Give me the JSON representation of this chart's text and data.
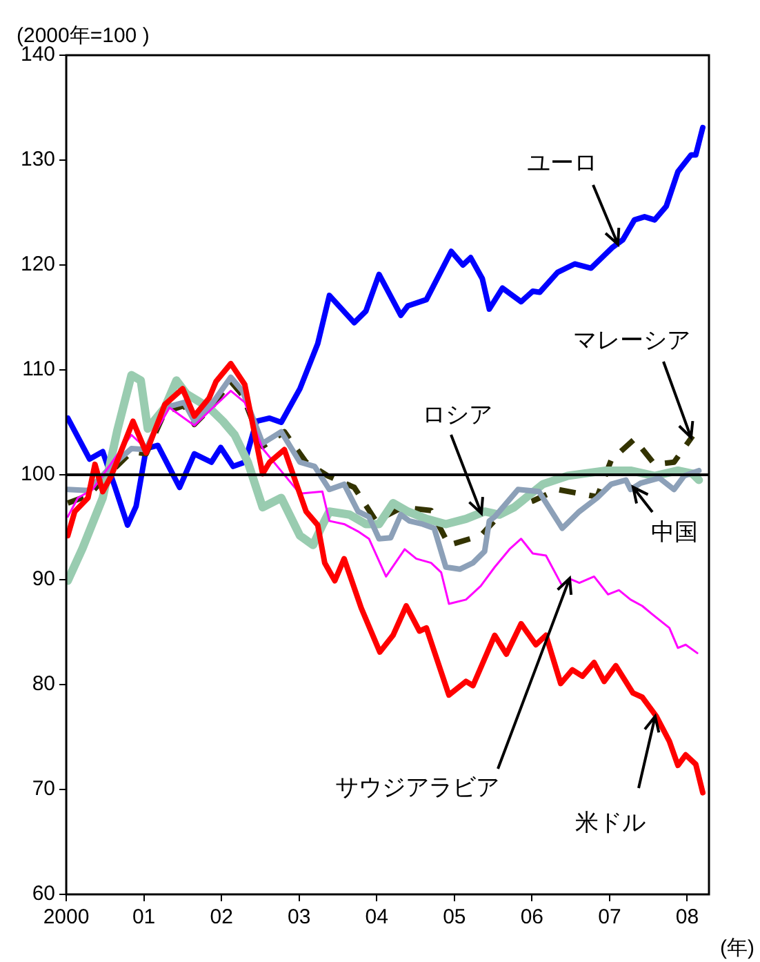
{
  "chart_data": {
    "type": "line",
    "ylabel": "(2000年=100 )",
    "xlabel": "(年)",
    "xlim": [
      2000,
      2008.28
    ],
    "ylim": [
      60,
      140
    ],
    "xticks": [
      {
        "value": 2000,
        "label": "2000"
      },
      {
        "value": 2001,
        "label": "01"
      },
      {
        "value": 2002,
        "label": "02"
      },
      {
        "value": 2003,
        "label": "03"
      },
      {
        "value": 2004,
        "label": "04"
      },
      {
        "value": 2005,
        "label": "05"
      },
      {
        "value": 2006,
        "label": "06"
      },
      {
        "value": 2007,
        "label": "07"
      },
      {
        "value": 2008,
        "label": "08"
      }
    ],
    "yticks": [
      60,
      70,
      80,
      90,
      100,
      110,
      120,
      130,
      140
    ],
    "grid": false,
    "legend": false,
    "marker": "none",
    "ref_lines": [
      {
        "axis": "y",
        "value": 100,
        "color": "#000000"
      }
    ],
    "annotations": [
      {
        "text": "ユーロ",
        "x": 2007.1,
        "y": 122
      },
      {
        "text": "マレーシア",
        "x": 2008.05,
        "y": 103.5
      },
      {
        "text": "ロシア",
        "x": 2005.34,
        "y": 96.3
      },
      {
        "text": "中国",
        "x": 2007.3,
        "y": 98.8
      },
      {
        "text": "サウジアラビア",
        "x": 2006.48,
        "y": 90.1
      },
      {
        "text": "米ドル",
        "x": 2007.58,
        "y": 77
      }
    ],
    "series": [
      {
        "color": "#0000ff",
        "x": [
          2000.02,
          2000.3,
          2000.47,
          2000.62,
          2000.79,
          2000.9,
          2001.03,
          2001.18,
          2001.46,
          2001.65,
          2001.87,
          2001.99,
          2002.15,
          2002.3,
          2002.45,
          2002.62,
          2002.77,
          2003.01,
          2003.24,
          2003.39,
          2003.71,
          2003.86,
          2004.03,
          2004.31,
          2004.4,
          2004.64,
          2004.96,
          2005.11,
          2005.21,
          2005.36,
          2005.45,
          2005.62,
          2005.86,
          2006.01,
          2006.1,
          2006.33,
          2006.55,
          2006.76,
          2007.04,
          2007.17,
          2007.32,
          2007.45,
          2007.58,
          2007.73,
          2007.88,
          2008.05,
          2008.11,
          2008.2
        ],
        "values": [
          105.4,
          101.5,
          102.2,
          99,
          95.2,
          97,
          102.5,
          102.8,
          98.8,
          102,
          101.2,
          102.6,
          100.8,
          101.2,
          105.1,
          105.4,
          105,
          108.2,
          112.5,
          117.1,
          114.5,
          115.6,
          119.1,
          115.2,
          116.1,
          116.7,
          121.3,
          120,
          120.7,
          118.7,
          115.8,
          117.8,
          116.5,
          117.5,
          117.4,
          119.3,
          120.1,
          119.7,
          121.7,
          122.4,
          124.3,
          124.6,
          124.3,
          125.6,
          128.9,
          130.5,
          130.5,
          133.1
        ]
      },
      {
        "color": "#333300",
        "line_style": "dashed",
        "x": [
          2000.02,
          2000.28,
          2000.58,
          2000.84,
          2001.03,
          2001.27,
          2001.52,
          2001.65,
          2001.89,
          2002.12,
          2002.27,
          2002.53,
          2002.81,
          2003.09,
          2003.37,
          2003.71,
          2003.99,
          2004.33,
          2004.7,
          2004.93,
          2005.34,
          2005.64,
          2006.01,
          2006.33,
          2006.84,
          2007.02,
          2007.32,
          2007.58,
          2007.83,
          2008.07
        ],
        "values": [
          97.3,
          98,
          100.3,
          102.2,
          102,
          106,
          106.6,
          104.8,
          106.6,
          108.9,
          107.6,
          102.7,
          104.1,
          101.2,
          99.9,
          98.8,
          95.6,
          96.9,
          96.6,
          93.3,
          94.2,
          96.6,
          97.5,
          98.6,
          97.9,
          101.4,
          103.4,
          101,
          101.2,
          103.7
        ]
      },
      {
        "color": "#99ccb0",
        "x": [
          2000.02,
          2000.21,
          2000.47,
          2000.66,
          2000.84,
          2000.96,
          2001.05,
          2001.27,
          2001.42,
          2001.55,
          2001.84,
          2002.02,
          2002.17,
          2002.34,
          2002.53,
          2002.77,
          2003.01,
          2003.18,
          2003.3,
          2003.39,
          2003.65,
          2003.86,
          2004.03,
          2004.21,
          2004.4,
          2004.64,
          2004.89,
          2005.15,
          2005.39,
          2005.58,
          2005.77,
          2006.14,
          2006.46,
          2006.95,
          2007.27,
          2007.58,
          2007.88,
          2008.07,
          2008.15
        ],
        "values": [
          89.9,
          93,
          97.8,
          104.3,
          109.5,
          109,
          104.4,
          106.4,
          109,
          107.7,
          106.4,
          105.1,
          103.8,
          101.2,
          96.9,
          97.8,
          94.2,
          93.3,
          95.2,
          96.5,
          96.2,
          95.3,
          95.3,
          97.3,
          96.5,
          95.8,
          95.3,
          95.8,
          96.5,
          96.2,
          96.9,
          99.1,
          99.9,
          100.4,
          100.4,
          99.9,
          100.4,
          100.1,
          99.5
        ]
      },
      {
        "color": "#8ca0b8",
        "x": [
          2000.02,
          2000.28,
          2000.58,
          2000.84,
          2001.03,
          2001.27,
          2001.52,
          2001.65,
          2001.89,
          2002.12,
          2002.27,
          2002.53,
          2002.77,
          2003.01,
          2003.2,
          2003.39,
          2003.58,
          2003.76,
          2003.9,
          2004.03,
          2004.18,
          2004.31,
          2004.42,
          2004.59,
          2004.74,
          2004.89,
          2005.07,
          2005.24,
          2005.39,
          2005.45,
          2005.52,
          2005.82,
          2006.09,
          2006.39,
          2006.61,
          2006.84,
          2007.02,
          2007.21,
          2007.27,
          2007.4,
          2007.64,
          2007.83,
          2007.96,
          2008.15
        ],
        "values": [
          98.6,
          98.5,
          100.8,
          102.5,
          102.4,
          106.4,
          106.9,
          105.1,
          106.9,
          109.3,
          108,
          103,
          104.1,
          101.2,
          100.8,
          98.6,
          99.1,
          96.5,
          96,
          93.9,
          94,
          96.2,
          95.6,
          95.3,
          94.9,
          91.2,
          91,
          91.6,
          92.7,
          95.6,
          96,
          98.6,
          98.4,
          94.9,
          96.5,
          97.8,
          99.1,
          99.5,
          98.6,
          99.2,
          99.7,
          98.6,
          99.9,
          100.4
        ]
      },
      {
        "color": "#ff00ff",
        "x": [
          2000.02,
          2000.15,
          2000.34,
          2000.84,
          2001.03,
          2001.33,
          2001.65,
          2001.89,
          2002.12,
          2002.3,
          2002.53,
          2002.72,
          2003.01,
          2003.3,
          2003.39,
          2003.58,
          2003.76,
          2003.9,
          2004.12,
          2004.36,
          2004.51,
          2004.7,
          2004.83,
          2004.93,
          2005.15,
          2005.34,
          2005.52,
          2005.71,
          2005.86,
          2006.01,
          2006.18,
          2006.39,
          2006.48,
          2006.61,
          2006.8,
          2006.98,
          2007.12,
          2007.27,
          2007.42,
          2007.55,
          2007.77,
          2007.88,
          2007.98,
          2008.13
        ],
        "values": [
          96,
          97.8,
          98.6,
          103.8,
          102.5,
          106.4,
          104.7,
          106.4,
          108,
          106.9,
          102.5,
          100.8,
          98.2,
          98.4,
          95.6,
          95.3,
          94.6,
          93.9,
          90.3,
          92.9,
          92,
          91.6,
          90.7,
          87.7,
          88.1,
          89.4,
          91.2,
          92.9,
          93.9,
          92.5,
          92.3,
          89.4,
          90.1,
          89.7,
          90.3,
          88.6,
          89,
          88.1,
          87.5,
          86.7,
          85.4,
          83.5,
          83.8,
          83
        ]
      },
      {
        "color": "#ff0000",
        "x": [
          2000.02,
          2000.11,
          2000.28,
          2000.37,
          2000.47,
          2000.58,
          2000.86,
          2001.03,
          2001.27,
          2001.5,
          2001.65,
          2001.84,
          2001.93,
          2002.12,
          2002.3,
          2002.53,
          2002.62,
          2002.81,
          2002.99,
          2003.09,
          2003.24,
          2003.33,
          2003.46,
          2003.58,
          2003.8,
          2004.04,
          2004.21,
          2004.38,
          2004.55,
          2004.64,
          2004.93,
          2005.15,
          2005.24,
          2005.52,
          2005.67,
          2005.86,
          2006.05,
          2006.18,
          2006.37,
          2006.52,
          2006.65,
          2006.8,
          2006.93,
          2007.08,
          2007.3,
          2007.42,
          2007.6,
          2007.77,
          2007.88,
          2007.98,
          2008.11,
          2008.2
        ],
        "values": [
          94.2,
          96.5,
          97.8,
          101,
          98.4,
          99.9,
          105.1,
          102.1,
          106.7,
          108.2,
          105.6,
          107.3,
          108.9,
          110.6,
          108.6,
          100.1,
          101.2,
          102.4,
          98.6,
          96.5,
          95.2,
          91.6,
          89.9,
          92,
          87.3,
          83.1,
          84.7,
          87.5,
          85.1,
          85.4,
          79,
          80.3,
          79.9,
          84.7,
          82.9,
          85.8,
          83.8,
          84.7,
          80.1,
          81.4,
          80.8,
          82.1,
          80.3,
          81.8,
          79.2,
          78.8,
          77,
          74.6,
          72.3,
          73.3,
          72.4,
          69.7
        ]
      }
    ]
  }
}
